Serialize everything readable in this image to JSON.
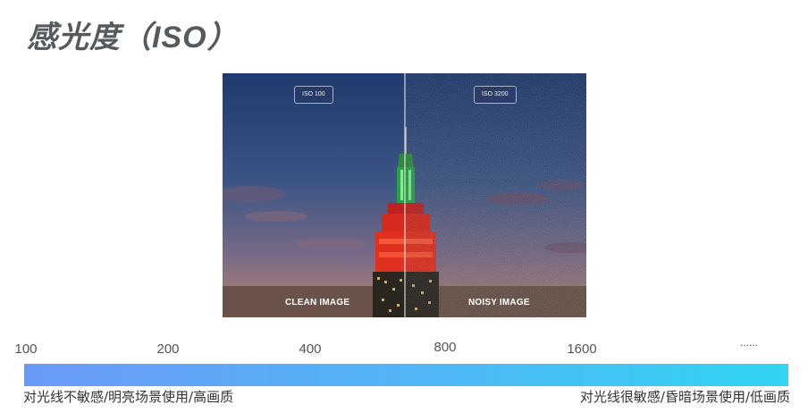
{
  "title": "感光度（ISO）",
  "photo": {
    "badge_left": "ISO 100",
    "badge_right": "ISO 3200",
    "caption_left": "CLEAN IMAGE",
    "caption_right": "NOISY IMAGE"
  },
  "scale": {
    "ticks": [
      "100",
      "200",
      "400",
      "800",
      "1600",
      "......"
    ],
    "gradient_colors": [
      "#6b99f8",
      "#31d4f2"
    ],
    "low_desc": "对光线不敏感/明亮场景使用/高画质",
    "high_desc": "对光线很敏感/昏暗场景使用/低画质"
  }
}
